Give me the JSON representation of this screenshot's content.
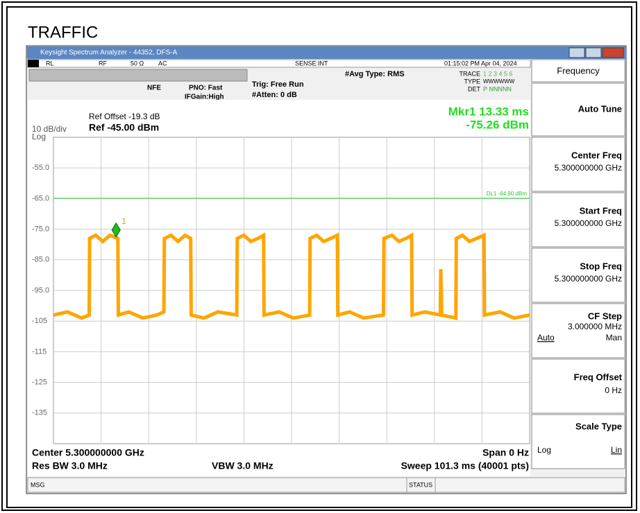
{
  "caption": "TRAFFIC",
  "window": {
    "title": "Keysight Spectrum Analyzer - 44352, DFS-A"
  },
  "status": {
    "rl": "RL",
    "rf": "RF",
    "impedance": "50 Ω",
    "coupling": "AC",
    "sense": "SENSE:INT",
    "datetime": "01:15:02 PM Apr 04, 2024"
  },
  "settings": {
    "nfe": "NFE",
    "pno": "PNO: Fast",
    "ifgain": "IFGain:High",
    "trig": "Trig: Free Run",
    "atten": "#Atten: 0 dB",
    "avg": "#Avg Type: RMS"
  },
  "trace_info": {
    "trace_label": "TRACE",
    "trace_nums": "1 2 3 4 5 6",
    "type_label": "TYPE",
    "type_value": "WWWWWW",
    "det_label": "DET",
    "det_value": "P NNNNN"
  },
  "ref": {
    "offset": "Ref Offset -19.3 dB",
    "level": "Ref -45.00 dBm",
    "scale": "10 dB/div",
    "log": "Log"
  },
  "marker_readout": {
    "time": "Mkr1 13.33 ms",
    "level": "-75.26 dBm"
  },
  "bottom": {
    "center": "Center 5.300000000 GHz",
    "span": "Span 0 Hz",
    "rbw": "Res BW 3.0 MHz",
    "vbw": "VBW 3.0 MHz",
    "sweep": "Sweep  101.3 ms (40001 pts)",
    "msg": "MSG",
    "status": "STATUS"
  },
  "softkeys": {
    "menu": "Frequency",
    "auto_tune": "Auto Tune",
    "center_freq": "Center Freq",
    "center_value": "5.300000000 GHz",
    "start_freq": "Start Freq",
    "start_value": "5.300000000 GHz",
    "stop_freq": "Stop Freq",
    "stop_value": "5.300000000 GHz",
    "cf_step": "CF Step",
    "cf_value": "3.000000 MHz",
    "cf_auto": "Auto",
    "cf_man": "Man",
    "freq_offset": "Freq Offset",
    "offset_value": "0 Hz",
    "scale_type": "Scale Type",
    "scale_log": "Log",
    "scale_lin": "Lin"
  },
  "chart_data": {
    "type": "line",
    "xlim": [
      0,
      101.3
    ],
    "ylim": [
      -145,
      -45
    ],
    "yticks": [
      {
        "value": -55,
        "label": "-55.0"
      },
      {
        "value": -65,
        "label": "-65.0"
      },
      {
        "value": -75,
        "label": "-75.0"
      },
      {
        "value": -85,
        "label": "-85.0"
      },
      {
        "value": -95,
        "label": "-95.0"
      },
      -105,
      -115,
      -125,
      -135
    ],
    "grid": true,
    "x": [
      0,
      3,
      6,
      7.6,
      7.7,
      9,
      10.5,
      12,
      13.7,
      13.8,
      16,
      19,
      22,
      23.5,
      23.6,
      25,
      26.5,
      28,
      29.2,
      29.3,
      32,
      35,
      39,
      39.1,
      40.5,
      42,
      43.5,
      44.7,
      44.8,
      48,
      51,
      54.5,
      54.6,
      56,
      57.5,
      59,
      60.4,
      60.5,
      63,
      66,
      70.2,
      70.3,
      72,
      73.5,
      75,
      76.2,
      76.3,
      79,
      82.3,
      82.4,
      82.6,
      85.6,
      85.7,
      87,
      88.5,
      90,
      91.6,
      91.7,
      95,
      98,
      101.3
    ],
    "series": [
      {
        "color": "#ffa500",
        "values": [
          -103,
          -102,
          -104,
          -103,
          -78,
          -77,
          -79,
          -77,
          -78,
          -103,
          -102,
          -104,
          -103,
          -102,
          -78,
          -77,
          -79,
          -77,
          -78,
          -103,
          -104,
          -102,
          -103,
          -78,
          -77,
          -79,
          -78,
          -77,
          -103,
          -102,
          -104,
          -103,
          -78,
          -77,
          -79,
          -78,
          -77,
          -103,
          -102,
          -104,
          -103,
          -78,
          -77,
          -79,
          -78,
          -77,
          -103,
          -102,
          -103,
          -88,
          -103,
          -104,
          -78,
          -77,
          -79,
          -78,
          -77,
          -103,
          -102,
          -104,
          -103
        ]
      }
    ],
    "display_line": {
      "value": -64.9,
      "label": "DL1 -64.90 dBm",
      "color": "#22cc22"
    },
    "marker": {
      "x": 13.33,
      "y": -75.26,
      "label": "1",
      "color": "#22bb22"
    }
  }
}
